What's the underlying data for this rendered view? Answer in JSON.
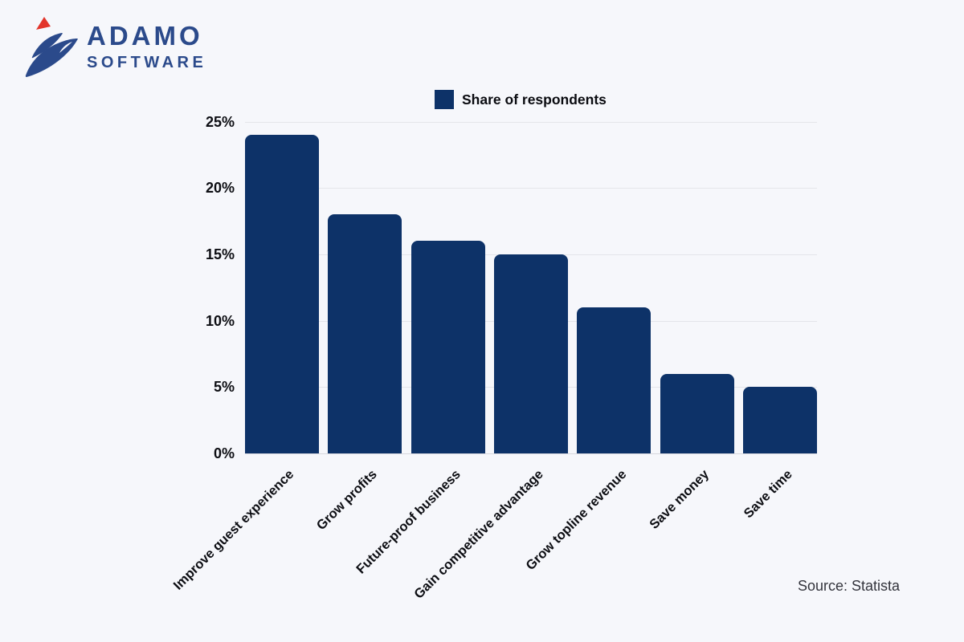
{
  "page": {
    "background_color": "#f6f7fb"
  },
  "logo": {
    "line1": "ADAMO",
    "line2": "SOFTWARE",
    "blue_color": "#2b4a8b",
    "red_color": "#e2342a"
  },
  "source": {
    "text": "Source: Statista"
  },
  "chart_data": {
    "type": "bar",
    "title": "",
    "categories": [
      "Improve guest experience",
      "Grow profits",
      "Future-proof business",
      "Gain competitive advantage",
      "Grow topline revenue",
      "Save money",
      "Save time"
    ],
    "values": [
      24,
      18,
      16,
      15,
      11,
      6,
      5
    ],
    "unit": "%",
    "xlabel": "",
    "ylabel": "",
    "ylim": [
      0,
      25
    ],
    "yticks": [
      0,
      5,
      10,
      15,
      20,
      25
    ],
    "ytick_labels": [
      "0%",
      "5%",
      "10%",
      "15%",
      "20%",
      "25%"
    ],
    "bar_color": "#0d3268",
    "grid": true,
    "gridline_color": "#e4e5ea",
    "legend": {
      "label": "Share of respondents",
      "position": "top-center"
    }
  }
}
